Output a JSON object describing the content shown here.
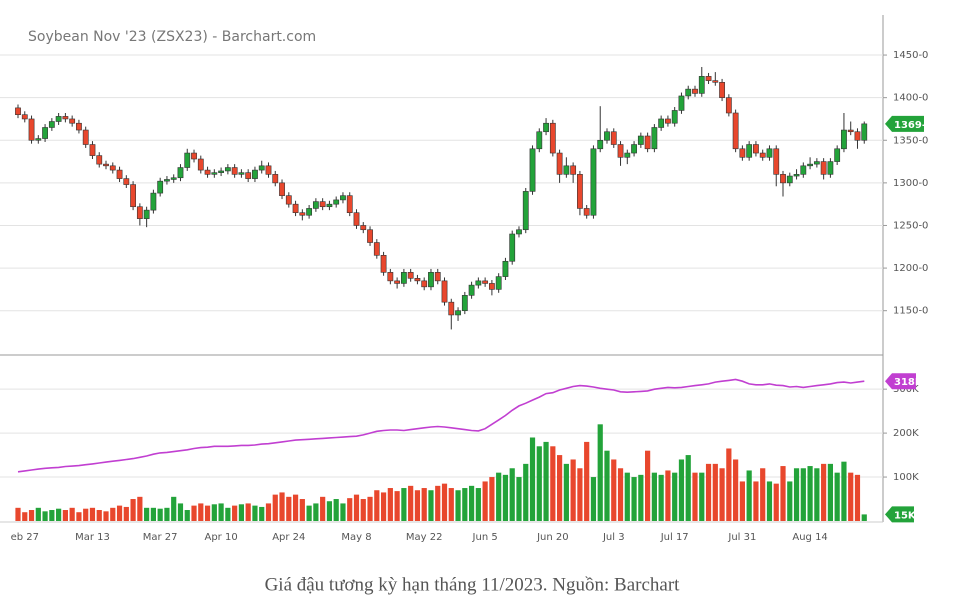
{
  "chart_data": [
    {
      "type": "candlestick",
      "title": "Soybean Nov '23 (ZSX23) - Barchart.com",
      "up_color": "#23a33a",
      "down_color": "#e8472d",
      "grid": true,
      "ylim": [
        1098,
        1497
      ],
      "yticks": [
        {
          "value": 1150,
          "label": "1150-0"
        },
        {
          "value": 1200,
          "label": "1200-0"
        },
        {
          "value": 1250,
          "label": "1250-0"
        },
        {
          "value": 1300,
          "label": "1300-0"
        },
        {
          "value": 1350,
          "label": "1350-0"
        },
        {
          "value": 1400,
          "label": "1400-0"
        },
        {
          "value": 1450,
          "label": "1450-0"
        }
      ],
      "last_label": "1369-2",
      "open": [
        1388,
        1380,
        1375,
        1350,
        1352,
        1365,
        1372,
        1378,
        1375,
        1370,
        1362,
        1345,
        1332,
        1322,
        1320,
        1315,
        1305,
        1298,
        1272,
        1258,
        1268,
        1288,
        1302,
        1304,
        1306,
        1318,
        1335,
        1328,
        1315,
        1310,
        1312,
        1314,
        1318,
        1310,
        1312,
        1305,
        1315,
        1320,
        1310,
        1300,
        1285,
        1275,
        1265,
        1262,
        1270,
        1278,
        1272,
        1275,
        1280,
        1285,
        1265,
        1250,
        1245,
        1230,
        1215,
        1195,
        1185,
        1182,
        1195,
        1188,
        1185,
        1178,
        1195,
        1185,
        1160,
        1145,
        1150,
        1168,
        1180,
        1185,
        1182,
        1175,
        1190,
        1208,
        1240,
        1245,
        1290,
        1340,
        1360,
        1370,
        1335,
        1310,
        1320,
        1310,
        1270,
        1262,
        1340,
        1350,
        1360,
        1345,
        1330,
        1335,
        1345,
        1355,
        1340,
        1365,
        1375,
        1370,
        1385,
        1402,
        1410,
        1405,
        1425,
        1420,
        1418,
        1400,
        1382,
        1340,
        1330,
        1345,
        1335,
        1330,
        1340,
        1310,
        1300,
        1308,
        1310,
        1320,
        1322,
        1325,
        1310,
        1325,
        1340,
        1362,
        1360,
        1350
      ],
      "high": [
        1392,
        1384,
        1379,
        1356,
        1369,
        1376,
        1382,
        1382,
        1379,
        1374,
        1366,
        1349,
        1336,
        1326,
        1324,
        1319,
        1309,
        1302,
        1276,
        1272,
        1292,
        1306,
        1308,
        1310,
        1322,
        1340,
        1339,
        1332,
        1319,
        1316,
        1318,
        1322,
        1322,
        1316,
        1316,
        1319,
        1326,
        1324,
        1314,
        1304,
        1289,
        1279,
        1269,
        1274,
        1282,
        1282,
        1279,
        1284,
        1289,
        1289,
        1269,
        1254,
        1249,
        1234,
        1219,
        1199,
        1189,
        1199,
        1199,
        1192,
        1189,
        1199,
        1199,
        1189,
        1164,
        1154,
        1172,
        1184,
        1189,
        1189,
        1186,
        1194,
        1212,
        1244,
        1249,
        1294,
        1344,
        1364,
        1376,
        1374,
        1339,
        1330,
        1324,
        1314,
        1274,
        1344,
        1390,
        1364,
        1364,
        1349,
        1339,
        1349,
        1359,
        1359,
        1369,
        1379,
        1379,
        1389,
        1406,
        1414,
        1414,
        1436,
        1429,
        1430,
        1422,
        1404,
        1386,
        1344,
        1349,
        1349,
        1339,
        1344,
        1344,
        1314,
        1312,
        1316,
        1324,
        1330,
        1329,
        1329,
        1329,
        1344,
        1382,
        1372,
        1364,
        1372
      ],
      "low": [
        1376,
        1371,
        1346,
        1346,
        1348,
        1361,
        1368,
        1371,
        1366,
        1358,
        1341,
        1328,
        1318,
        1316,
        1311,
        1301,
        1294,
        1268,
        1250,
        1248,
        1264,
        1284,
        1298,
        1300,
        1302,
        1314,
        1324,
        1311,
        1306,
        1306,
        1308,
        1310,
        1306,
        1306,
        1301,
        1301,
        1311,
        1306,
        1296,
        1281,
        1271,
        1261,
        1256,
        1258,
        1266,
        1268,
        1268,
        1271,
        1276,
        1261,
        1246,
        1241,
        1226,
        1211,
        1191,
        1181,
        1176,
        1178,
        1184,
        1181,
        1174,
        1174,
        1181,
        1156,
        1128,
        1138,
        1146,
        1164,
        1176,
        1178,
        1168,
        1171,
        1186,
        1204,
        1236,
        1241,
        1286,
        1336,
        1356,
        1331,
        1300,
        1306,
        1300,
        1262,
        1258,
        1258,
        1336,
        1346,
        1341,
        1320,
        1322,
        1331,
        1341,
        1336,
        1336,
        1361,
        1366,
        1366,
        1381,
        1398,
        1401,
        1401,
        1416,
        1414,
        1396,
        1378,
        1336,
        1326,
        1326,
        1331,
        1326,
        1326,
        1296,
        1284,
        1296,
        1304,
        1306,
        1316,
        1318,
        1304,
        1306,
        1321,
        1336,
        1356,
        1340,
        1346
      ],
      "close": [
        1380,
        1375,
        1350,
        1352,
        1365,
        1372,
        1378,
        1375,
        1370,
        1362,
        1345,
        1332,
        1322,
        1320,
        1315,
        1305,
        1298,
        1272,
        1258,
        1268,
        1288,
        1302,
        1304,
        1306,
        1318,
        1335,
        1328,
        1315,
        1310,
        1312,
        1314,
        1318,
        1310,
        1312,
        1305,
        1315,
        1320,
        1310,
        1300,
        1285,
        1275,
        1265,
        1262,
        1270,
        1278,
        1272,
        1275,
        1280,
        1285,
        1265,
        1250,
        1245,
        1230,
        1215,
        1195,
        1185,
        1182,
        1195,
        1188,
        1185,
        1178,
        1195,
        1185,
        1160,
        1145,
        1150,
        1168,
        1180,
        1185,
        1182,
        1175,
        1190,
        1208,
        1240,
        1245,
        1290,
        1340,
        1360,
        1370,
        1335,
        1310,
        1320,
        1310,
        1270,
        1262,
        1340,
        1350,
        1360,
        1345,
        1330,
        1335,
        1345,
        1355,
        1340,
        1365,
        1375,
        1370,
        1385,
        1402,
        1410,
        1405,
        1425,
        1420,
        1418,
        1400,
        1382,
        1340,
        1330,
        1345,
        1335,
        1330,
        1340,
        1310,
        1300,
        1308,
        1310,
        1320,
        1322,
        1325,
        1310,
        1325,
        1340,
        1362,
        1360,
        1350,
        1369.25
      ]
    },
    {
      "type": "bar",
      "grid": true,
      "ylim": [
        0,
        380000
      ],
      "yticks": [
        {
          "value": 100000,
          "label": "100K"
        },
        {
          "value": 200000,
          "label": "200K"
        },
        {
          "value": 300000,
          "label": "300K"
        }
      ],
      "categories": [
        null,
        "eb 27",
        null,
        null,
        null,
        null,
        null,
        null,
        null,
        null,
        null,
        "Mar 13",
        null,
        null,
        null,
        null,
        null,
        null,
        null,
        null,
        null,
        "Mar 27",
        null,
        null,
        null,
        null,
        null,
        null,
        null,
        null,
        "Apr 10",
        null,
        null,
        null,
        null,
        null,
        null,
        null,
        null,
        null,
        "Apr 24",
        null,
        null,
        null,
        null,
        null,
        null,
        null,
        null,
        null,
        "May 8",
        null,
        null,
        null,
        null,
        null,
        null,
        null,
        null,
        null,
        "May 22",
        null,
        null,
        null,
        null,
        null,
        null,
        null,
        null,
        "Jun 5",
        null,
        null,
        null,
        null,
        null,
        null,
        null,
        null,
        null,
        "Jun 20",
        null,
        null,
        null,
        null,
        null,
        null,
        null,
        null,
        "Jul 3",
        null,
        null,
        null,
        null,
        null,
        null,
        null,
        null,
        "Jul 17",
        null,
        null,
        null,
        null,
        null,
        null,
        null,
        null,
        null,
        "Jul 31",
        null,
        null,
        null,
        null,
        null,
        null,
        null,
        null,
        null,
        "Aug 14",
        null,
        null,
        null,
        null,
        null,
        null,
        null,
        null
      ],
      "series": [
        {
          "type": "bar",
          "last_label": "15K",
          "values": [
            30000,
            20000,
            25000,
            30000,
            22000,
            25000,
            28000,
            25000,
            30000,
            20000,
            28000,
            30000,
            25000,
            22000,
            30000,
            35000,
            32000,
            50000,
            55000,
            30000,
            30000,
            28000,
            30000,
            55000,
            40000,
            25000,
            35000,
            40000,
            35000,
            38000,
            40000,
            30000,
            35000,
            38000,
            40000,
            35000,
            32000,
            40000,
            60000,
            65000,
            55000,
            60000,
            50000,
            35000,
            40000,
            55000,
            45000,
            50000,
            40000,
            52000,
            60000,
            50000,
            55000,
            70000,
            65000,
            75000,
            68000,
            75000,
            80000,
            70000,
            75000,
            70000,
            80000,
            85000,
            75000,
            70000,
            75000,
            80000,
            75000,
            90000,
            100000,
            110000,
            105000,
            120000,
            100000,
            130000,
            190000,
            170000,
            180000,
            170000,
            150000,
            130000,
            140000,
            120000,
            180000,
            100000,
            220000,
            160000,
            140000,
            120000,
            110000,
            100000,
            105000,
            160000,
            110000,
            105000,
            115000,
            110000,
            140000,
            150000,
            110000,
            110000,
            130000,
            130000,
            120000,
            165000,
            140000,
            90000,
            115000,
            90000,
            120000,
            90000,
            85000,
            125000,
            90000,
            120000,
            120000,
            125000,
            120000,
            130000,
            130000,
            110000,
            135000,
            110000,
            105000,
            15000
          ]
        },
        {
          "type": "line",
          "color": "#c13fd1",
          "last_label": "318K",
          "values": [
            112000,
            114000,
            116000,
            118000,
            120000,
            121000,
            122000,
            124000,
            125000,
            126000,
            128000,
            130000,
            132000,
            134000,
            136000,
            138000,
            140000,
            142000,
            145000,
            148000,
            152000,
            155000,
            156000,
            158000,
            160000,
            162000,
            165000,
            167000,
            168000,
            170000,
            170000,
            170000,
            171000,
            172000,
            172000,
            173000,
            175000,
            176000,
            178000,
            180000,
            182000,
            184000,
            185000,
            186000,
            187000,
            188000,
            189000,
            190000,
            191000,
            192000,
            193000,
            196000,
            200000,
            204000,
            206000,
            207000,
            207000,
            206000,
            208000,
            210000,
            212000,
            214000,
            215000,
            214000,
            212000,
            210000,
            208000,
            206000,
            205000,
            210000,
            220000,
            230000,
            240000,
            252000,
            262000,
            268000,
            275000,
            282000,
            290000,
            292000,
            298000,
            302000,
            306000,
            308000,
            307000,
            305000,
            302000,
            300000,
            298000,
            294000,
            293000,
            294000,
            295000,
            296000,
            300000,
            302000,
            304000,
            303000,
            304000,
            306000,
            308000,
            310000,
            312000,
            316000,
            318000,
            320000,
            322000,
            318000,
            312000,
            310000,
            310000,
            312000,
            309000,
            308000,
            305000,
            306000,
            304000,
            306000,
            308000,
            310000,
            312000,
            315000,
            316000,
            314000,
            316000,
            318000
          ]
        }
      ]
    }
  ],
  "caption": "Giá đậu tương kỳ hạn tháng 11/2023. Nguồn: Barchart"
}
